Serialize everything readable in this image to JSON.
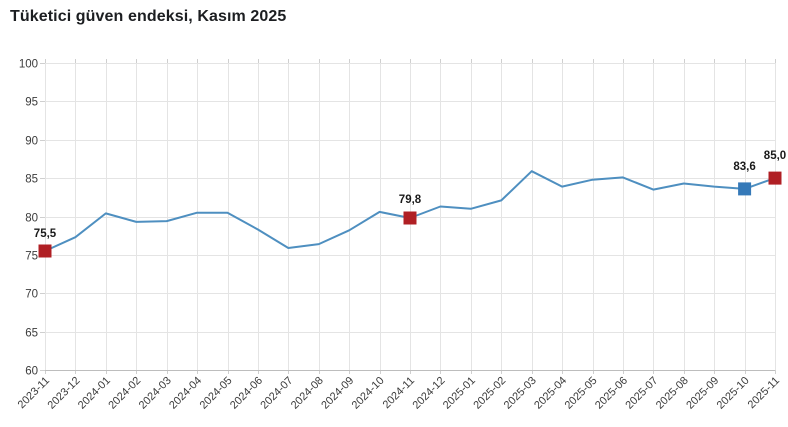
{
  "page": {
    "title": "Tüketici güven endeksi, Kasım 2025"
  },
  "chart_data": {
    "type": "line",
    "title": "Tüketici güven endeksi, Kasım 2025",
    "categories": [
      "2023-11",
      "2023-12",
      "2024-01",
      "2024-02",
      "2024-03",
      "2024-04",
      "2024-05",
      "2024-06",
      "2024-07",
      "2024-08",
      "2024-09",
      "2024-10",
      "2024-11",
      "2024-12",
      "2025-01",
      "2025-02",
      "2025-03",
      "2025-04",
      "2025-05",
      "2025-06",
      "2025-07",
      "2025-08",
      "2025-09",
      "2025-10",
      "2025-11"
    ],
    "values": [
      75.5,
      77.3,
      80.4,
      79.3,
      79.4,
      80.5,
      80.5,
      78.3,
      75.9,
      76.4,
      78.2,
      80.6,
      79.8,
      81.3,
      81.0,
      82.1,
      85.9,
      83.9,
      84.8,
      85.1,
      83.5,
      84.3,
      83.9,
      83.6,
      85.0
    ],
    "ylim": [
      60,
      100
    ],
    "yticks": [
      60,
      65,
      70,
      75,
      80,
      85,
      90,
      95,
      100
    ],
    "grid": true,
    "legend": "none",
    "xlabel": "",
    "ylabel": "",
    "line_color": "#4e8fc0",
    "grid_color": "#e4e4e4",
    "axis_line_color": "#bdbdbd",
    "tick_color": "#cfcfcf",
    "axis_label_color": "#3c3c3c",
    "data_label_color": "#1a1a1a",
    "annotated_points": [
      {
        "index": 0,
        "category": "2023-11",
        "value": 75.5,
        "label": "75,5",
        "marker_color": "#b01f24",
        "label_dy": -14
      },
      {
        "index": 12,
        "category": "2024-11",
        "value": 79.8,
        "label": "79,8",
        "marker_color": "#b01f24",
        "label_dy": -15
      },
      {
        "index": 23,
        "category": "2025-10",
        "value": 83.6,
        "label": "83,6",
        "marker_color": "#3579b8",
        "label_dy": -19
      },
      {
        "index": 24,
        "category": "2025-11",
        "value": 85.0,
        "label": "85,0",
        "marker_color": "#b01f24",
        "label_dy": -19
      }
    ]
  }
}
